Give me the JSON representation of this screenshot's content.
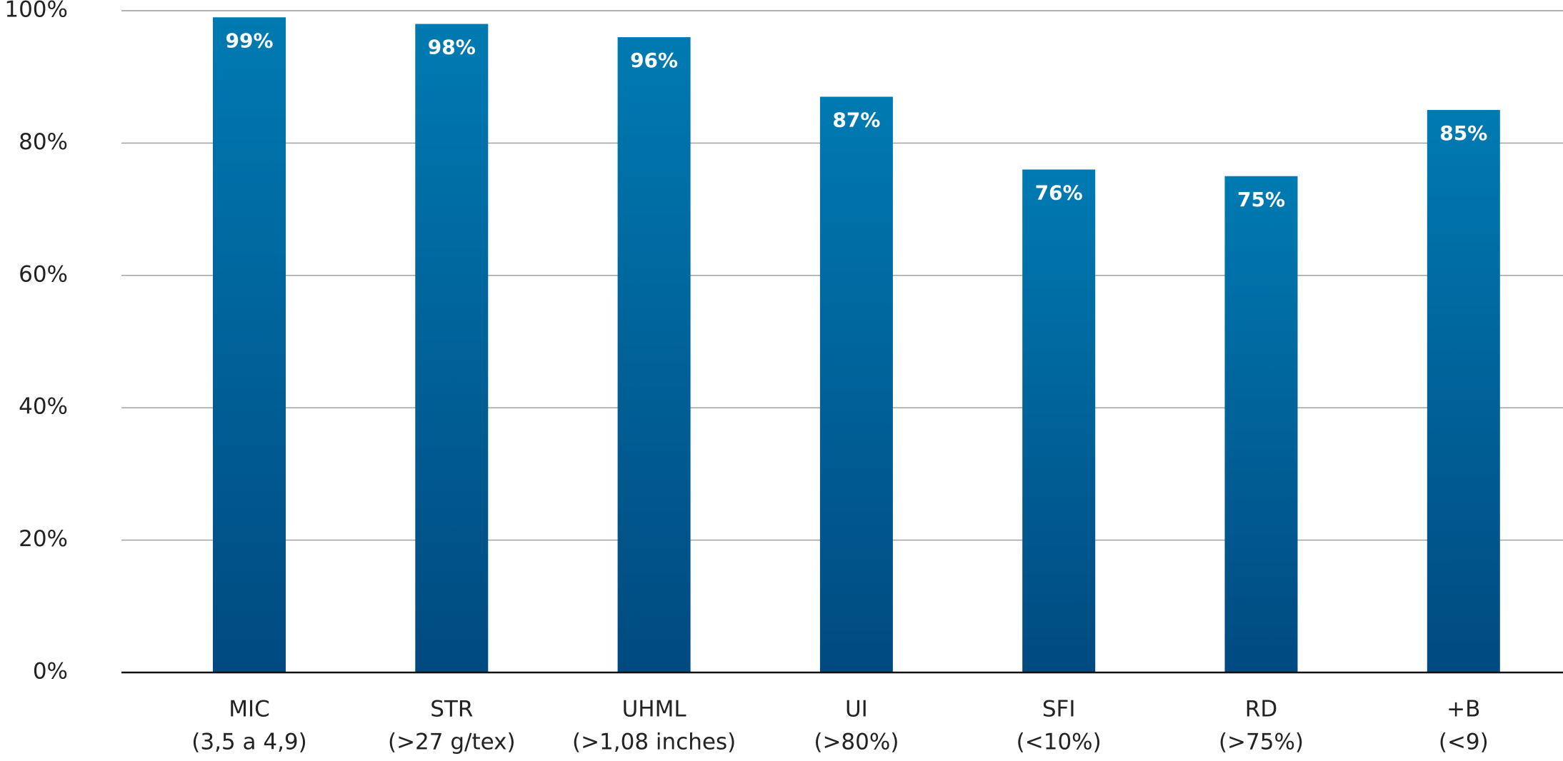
{
  "chart_data": {
    "type": "bar",
    "categories": [
      [
        "MIC",
        "(3,5 a 4,9)"
      ],
      [
        "STR",
        "(>27 g/tex)"
      ],
      [
        "UHML",
        "(>1,08 inches)"
      ],
      [
        "UI",
        "(>80%)"
      ],
      [
        "SFI",
        "(<10%)"
      ],
      [
        "RD",
        "(>75%)"
      ],
      [
        "+B",
        "(<9)"
      ]
    ],
    "values": [
      99,
      98,
      96,
      87,
      76,
      75,
      85
    ],
    "value_labels": [
      "99%",
      "98%",
      "96%",
      "87%",
      "76%",
      "75%",
      "85%"
    ],
    "color": [
      "#007ab2",
      "#004a80"
    ],
    "ylim": [
      0,
      100
    ],
    "yticks": [
      {
        "value": 0,
        "label": "0%"
      },
      {
        "value": 20,
        "label": "20%"
      },
      {
        "value": 40,
        "label": "40%"
      },
      {
        "value": 60,
        "label": "60%"
      },
      {
        "value": 80,
        "label": "80%"
      },
      {
        "value": 100,
        "label": "100%"
      }
    ],
    "grid": true
  }
}
